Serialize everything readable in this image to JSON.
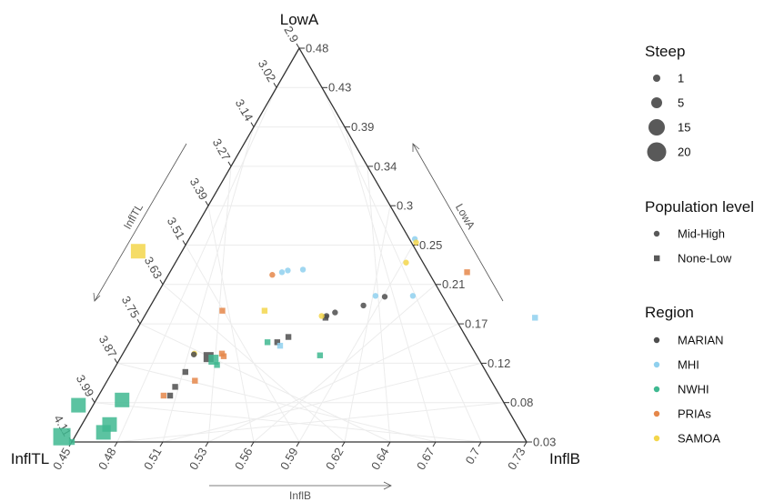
{
  "chart_data": {
    "type": "scatter",
    "subtype": "ternary",
    "corners": {
      "top": "LowA",
      "left": "InflTL",
      "right": "InflB"
    },
    "axis_names": {
      "bottom": "InflB",
      "left": "InflTL",
      "right": "LowA"
    },
    "axes": {
      "bottom": {
        "name": "InflB",
        "range": [
          0.45,
          0.73
        ],
        "ticks": [
          "0.45",
          "0.48",
          "0.51",
          "0.53",
          "0.56",
          "0.59",
          "0.62",
          "0.64",
          "0.67",
          "0.7",
          "0.73"
        ]
      },
      "right": {
        "name": "LowA",
        "range": [
          0.03,
          0.48
        ],
        "ticks": [
          "0.03",
          "0.08",
          "0.12",
          "0.17",
          "0.21",
          "0.25",
          "0.3",
          "0.34",
          "0.39",
          "0.43",
          "0.48"
        ]
      },
      "left": {
        "name": "InflTL",
        "range": [
          2.9,
          4.11
        ],
        "ticks": [
          "4.11",
          "3.99",
          "3.87",
          "3.75",
          "3.63",
          "3.51",
          "3.39",
          "3.27",
          "3.14",
          "3.02",
          "2.9"
        ]
      }
    },
    "grid": true,
    "legends": {
      "size": {
        "title": "Steep",
        "entries": [
          {
            "label": "1",
            "value": 1
          },
          {
            "label": "5",
            "value": 5
          },
          {
            "label": "15",
            "value": 15
          },
          {
            "label": "20",
            "value": 20
          }
        ]
      },
      "shape": {
        "title": "Population level",
        "entries": [
          {
            "label": "Mid-High",
            "shape": "circle"
          },
          {
            "label": "None-Low",
            "shape": "square"
          }
        ]
      },
      "color": {
        "title": "Region",
        "entries": [
          {
            "label": "MARIAN",
            "color": "#4d4d4d"
          },
          {
            "label": "MHI",
            "color": "#8fd0ee"
          },
          {
            "label": "NWHI",
            "color": "#3fb991"
          },
          {
            "label": "PRIAs",
            "color": "#e5874a"
          },
          {
            "label": "SAMOA",
            "color": "#f3d64b"
          }
        ]
      }
    },
    "points": [
      {
        "region": "NWHI",
        "level": "None-Low",
        "steep": 1,
        "inflb": 0.45,
        "lowa": 0.03
      },
      {
        "region": "MHI",
        "level": "Mid-High",
        "steep": 1,
        "inflb": 0.589,
        "lowa": 0.262
      },
      {
        "region": "SAMOA",
        "level": "Mid-High",
        "steep": 1,
        "inflb": 0.591,
        "lowa": 0.258
      },
      {
        "region": "MHI",
        "level": "Mid-High",
        "steep": 1,
        "inflb": 0.531,
        "lowa": 0.227
      },
      {
        "region": "MHI",
        "level": "Mid-High",
        "steep": 1,
        "inflb": 0.522,
        "lowa": 0.226
      },
      {
        "region": "MHI",
        "level": "Mid-High",
        "steep": 1,
        "inflb": 0.519,
        "lowa": 0.224
      },
      {
        "region": "PRIAs",
        "level": "Mid-High",
        "steep": 1,
        "inflb": 0.514,
        "lowa": 0.221
      },
      {
        "region": "SAMOA",
        "level": "Mid-High",
        "steep": 1,
        "inflb": 0.592,
        "lowa": 0.235
      },
      {
        "region": "PRIAs",
        "level": "None-Low",
        "steep": 1,
        "inflb": 0.633,
        "lowa": 0.224
      },
      {
        "region": "MHI",
        "level": "Mid-High",
        "steep": 1,
        "inflb": 0.608,
        "lowa": 0.197
      },
      {
        "region": "MARIAN",
        "level": "Mid-High",
        "steep": 1,
        "inflb": 0.591,
        "lowa": 0.196
      },
      {
        "region": "MHI",
        "level": "Mid-High",
        "steep": 1,
        "inflb": 0.585,
        "lowa": 0.197
      },
      {
        "region": "MARIAN",
        "level": "Mid-High",
        "steep": 1,
        "inflb": 0.581,
        "lowa": 0.186
      },
      {
        "region": "MARIAN",
        "level": "Mid-High",
        "steep": 1,
        "inflb": 0.566,
        "lowa": 0.178
      },
      {
        "region": "MARIAN",
        "level": "Mid-High",
        "steep": 1,
        "inflb": 0.562,
        "lowa": 0.174
      },
      {
        "region": "MARIAN",
        "level": "None-Low",
        "steep": 1,
        "inflb": 0.562,
        "lowa": 0.172
      },
      {
        "region": "SAMOA",
        "level": "Mid-High",
        "steep": 1,
        "inflb": 0.559,
        "lowa": 0.174
      },
      {
        "region": "PRIAs",
        "level": "None-Low",
        "steep": 1,
        "inflb": 0.496,
        "lowa": 0.18
      },
      {
        "region": "SAMOA",
        "level": "None-Low",
        "steep": 1,
        "inflb": 0.522,
        "lowa": 0.18
      },
      {
        "region": "MHI",
        "level": "None-Low",
        "steep": 1,
        "inflb": 0.691,
        "lowa": 0.172
      },
      {
        "region": "MARIAN",
        "level": "None-Low",
        "steep": 1,
        "inflb": 0.546,
        "lowa": 0.15
      },
      {
        "region": "MARIAN",
        "level": "None-Low",
        "steep": 1,
        "inflb": 0.541,
        "lowa": 0.144
      },
      {
        "region": "NWHI",
        "level": "None-Low",
        "steep": 1,
        "inflb": 0.535,
        "lowa": 0.144
      },
      {
        "region": "MHI",
        "level": "None-Low",
        "steep": 1,
        "inflb": 0.544,
        "lowa": 0.14
      },
      {
        "region": "NWHI",
        "level": "None-Low",
        "steep": 1,
        "inflb": 0.572,
        "lowa": 0.129
      },
      {
        "region": "SAMOA",
        "level": "Mid-High",
        "steep": 1,
        "inflb": 0.494,
        "lowa": 0.131
      },
      {
        "region": "MARIAN",
        "level": "Mid-High",
        "steep": 1,
        "inflb": 0.494,
        "lowa": 0.13
      },
      {
        "region": "PRIAs",
        "level": "None-Low",
        "steep": 1,
        "inflb": 0.511,
        "lowa": 0.131
      },
      {
        "region": "MARIAN",
        "level": "None-Low",
        "steep": 5,
        "inflb": 0.504,
        "lowa": 0.127
      },
      {
        "region": "NWHI",
        "level": "None-Low",
        "steep": 5,
        "inflb": 0.508,
        "lowa": 0.124
      },
      {
        "region": "PRIAs",
        "level": "None-Low",
        "steep": 1,
        "inflb": 0.513,
        "lowa": 0.128
      },
      {
        "region": "NWHI",
        "level": "None-Low",
        "steep": 1,
        "inflb": 0.512,
        "lowa": 0.118
      },
      {
        "region": "MARIAN",
        "level": "None-Low",
        "steep": 1,
        "inflb": 0.495,
        "lowa": 0.11
      },
      {
        "region": "PRIAs",
        "level": "None-Low",
        "steep": 1,
        "inflb": 0.504,
        "lowa": 0.1
      },
      {
        "region": "MARIAN",
        "level": "None-Low",
        "steep": 1,
        "inflb": 0.494,
        "lowa": 0.093
      },
      {
        "region": "PRIAs",
        "level": "None-Low",
        "steep": 1,
        "inflb": 0.49,
        "lowa": 0.083
      },
      {
        "region": "MARIAN",
        "level": "None-Low",
        "steep": 1,
        "inflb": 0.494,
        "lowa": 0.083
      },
      {
        "region": "SAMOA",
        "level": "None-Low",
        "steep": 15,
        "inflb": 0.423,
        "lowa": 0.248
      },
      {
        "region": "NWHI",
        "level": "None-Low",
        "steep": 15,
        "inflb": 0.466,
        "lowa": 0.078
      },
      {
        "region": "NWHI",
        "level": "None-Low",
        "steep": 15,
        "inflb": 0.441,
        "lowa": 0.072
      },
      {
        "region": "NWHI",
        "level": "None-Low",
        "steep": 15,
        "inflb": 0.467,
        "lowa": 0.05
      },
      {
        "region": "NWHI",
        "level": "None-Low",
        "steep": 15,
        "inflb": 0.466,
        "lowa": 0.041
      },
      {
        "region": "NWHI",
        "level": "None-Low",
        "steep": 20,
        "inflb": 0.442,
        "lowa": 0.036
      }
    ]
  }
}
